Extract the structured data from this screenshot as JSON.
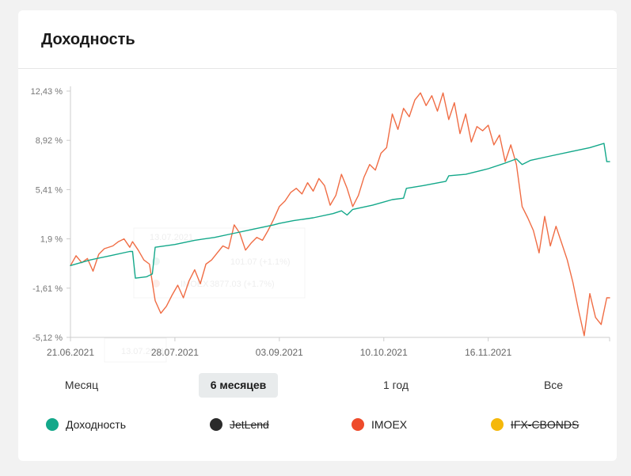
{
  "card": {
    "title": "Доходность"
  },
  "colors": {
    "dokhodnost": "#13a88a",
    "jetlend": "#2b2b2b",
    "imoex": "#ee4b2b",
    "imoex_line": "#f06d45",
    "ifx": "#f5b80a"
  },
  "periods": [
    {
      "label": "Месяц",
      "active": false
    },
    {
      "label": "6 месяцев",
      "active": true
    },
    {
      "label": "1 год",
      "active": false
    },
    {
      "label": "Все",
      "active": false
    }
  ],
  "legend": [
    {
      "label": "Доходность",
      "color": "#13a88a",
      "enabled": true,
      "icon": "dot-icon"
    },
    {
      "label": "JetLend",
      "color": "#2b2b2b",
      "enabled": false,
      "icon": "dot-icon"
    },
    {
      "label": "IMOEX",
      "color": "#ee4b2b",
      "enabled": true,
      "icon": "dot-icon"
    },
    {
      "label": "IFX-CBONDS",
      "color": "#f5b80a",
      "enabled": false,
      "icon": "dot-icon"
    }
  ],
  "chart_data": {
    "type": "line",
    "yticks": [
      "12,43 %",
      "8,92 %",
      "5,41 %",
      "1,9 %",
      "-1,61 %",
      "-5,12 %"
    ],
    "ytick_values": [
      12.43,
      8.92,
      5.41,
      1.9,
      -1.61,
      -5.12
    ],
    "ylim": [
      -5.12,
      12.43
    ],
    "xlim": [
      "2021-06-21",
      "2021-12-29"
    ],
    "xticks": [
      {
        "label": "21.06.2021",
        "date": "2021-06-21"
      },
      {
        "label": "28.07.2021",
        "date": "2021-07-28"
      },
      {
        "label": "03.09.2021",
        "date": "2021-09-03"
      },
      {
        "label": "10.10.2021",
        "date": "2021-10-10"
      },
      {
        "label": "16.11.2021",
        "date": "2021-11-16"
      }
    ],
    "grid": false,
    "ghost_tooltip": {
      "date": "13.07.2021",
      "row1": "101.07 (+1.1%)",
      "row2": "3877.03 (+1.7%)",
      "row2_name": "IMOEX",
      "footer": "13.07.2021"
    },
    "series": [
      {
        "name": "Доходность",
        "color": "#13a88a",
        "points": [
          [
            "2021-06-21",
            0.0
          ],
          [
            "2021-06-28",
            0.4
          ],
          [
            "2021-07-05",
            0.7
          ],
          [
            "2021-07-12",
            1.0
          ],
          [
            "2021-07-13",
            1.0
          ],
          [
            "2021-07-14",
            -0.9
          ],
          [
            "2021-07-18",
            -0.8
          ],
          [
            "2021-07-20",
            -0.6
          ],
          [
            "2021-07-21",
            1.3
          ],
          [
            "2021-07-28",
            1.5
          ],
          [
            "2021-08-04",
            1.8
          ],
          [
            "2021-08-11",
            2.0
          ],
          [
            "2021-08-18",
            2.3
          ],
          [
            "2021-08-25",
            2.6
          ],
          [
            "2021-09-01",
            2.9
          ],
          [
            "2021-09-03",
            3.0
          ],
          [
            "2021-09-08",
            3.2
          ],
          [
            "2021-09-15",
            3.4
          ],
          [
            "2021-09-22",
            3.7
          ],
          [
            "2021-09-25",
            3.9
          ],
          [
            "2021-09-27",
            3.6
          ],
          [
            "2021-09-29",
            4.0
          ],
          [
            "2021-10-06",
            4.3
          ],
          [
            "2021-10-13",
            4.7
          ],
          [
            "2021-10-17",
            4.8
          ],
          [
            "2021-10-18",
            5.5
          ],
          [
            "2021-10-24",
            5.7
          ],
          [
            "2021-11-01",
            6.0
          ],
          [
            "2021-11-02",
            6.4
          ],
          [
            "2021-11-08",
            6.5
          ],
          [
            "2021-11-14",
            6.8
          ],
          [
            "2021-11-16",
            6.9
          ],
          [
            "2021-11-22",
            7.3
          ],
          [
            "2021-11-26",
            7.6
          ],
          [
            "2021-11-28",
            7.2
          ],
          [
            "2021-12-01",
            7.5
          ],
          [
            "2021-12-08",
            7.8
          ],
          [
            "2021-12-15",
            8.1
          ],
          [
            "2021-12-22",
            8.4
          ],
          [
            "2021-12-27",
            8.7
          ],
          [
            "2021-12-28",
            7.4
          ],
          [
            "2021-12-29",
            7.4
          ]
        ]
      },
      {
        "name": "IMOEX",
        "color": "#f06d45",
        "points": [
          [
            "2021-06-21",
            0.0
          ],
          [
            "2021-06-23",
            0.7
          ],
          [
            "2021-06-25",
            0.2
          ],
          [
            "2021-06-27",
            0.5
          ],
          [
            "2021-06-29",
            -0.4
          ],
          [
            "2021-07-01",
            0.8
          ],
          [
            "2021-07-03",
            1.2
          ],
          [
            "2021-07-06",
            1.4
          ],
          [
            "2021-07-08",
            1.7
          ],
          [
            "2021-07-10",
            1.9
          ],
          [
            "2021-07-12",
            1.3
          ],
          [
            "2021-07-13",
            1.7
          ],
          [
            "2021-07-15",
            1.1
          ],
          [
            "2021-07-17",
            0.4
          ],
          [
            "2021-07-19",
            0.1
          ],
          [
            "2021-07-21",
            -2.5
          ],
          [
            "2021-07-23",
            -3.4
          ],
          [
            "2021-07-25",
            -2.9
          ],
          [
            "2021-07-27",
            -2.1
          ],
          [
            "2021-07-29",
            -1.4
          ],
          [
            "2021-07-31",
            -2.3
          ],
          [
            "2021-08-02",
            -1.1
          ],
          [
            "2021-08-04",
            -0.3
          ],
          [
            "2021-08-06",
            -1.3
          ],
          [
            "2021-08-08",
            0.1
          ],
          [
            "2021-08-10",
            0.4
          ],
          [
            "2021-08-12",
            0.9
          ],
          [
            "2021-08-14",
            1.4
          ],
          [
            "2021-08-16",
            1.2
          ],
          [
            "2021-08-18",
            2.9
          ],
          [
            "2021-08-20",
            2.3
          ],
          [
            "2021-08-22",
            1.1
          ],
          [
            "2021-08-24",
            1.6
          ],
          [
            "2021-08-26",
            2.0
          ],
          [
            "2021-08-28",
            1.8
          ],
          [
            "2021-08-30",
            2.5
          ],
          [
            "2021-09-01",
            3.3
          ],
          [
            "2021-09-03",
            4.2
          ],
          [
            "2021-09-05",
            4.6
          ],
          [
            "2021-09-07",
            5.2
          ],
          [
            "2021-09-09",
            5.5
          ],
          [
            "2021-09-11",
            5.1
          ],
          [
            "2021-09-13",
            5.9
          ],
          [
            "2021-09-15",
            5.3
          ],
          [
            "2021-09-17",
            6.2
          ],
          [
            "2021-09-19",
            5.7
          ],
          [
            "2021-09-21",
            4.3
          ],
          [
            "2021-09-23",
            5.0
          ],
          [
            "2021-09-25",
            6.5
          ],
          [
            "2021-09-27",
            5.5
          ],
          [
            "2021-09-29",
            4.2
          ],
          [
            "2021-10-01",
            5.0
          ],
          [
            "2021-10-03",
            6.3
          ],
          [
            "2021-10-05",
            7.2
          ],
          [
            "2021-10-07",
            6.8
          ],
          [
            "2021-10-09",
            8.0
          ],
          [
            "2021-10-11",
            8.4
          ],
          [
            "2021-10-13",
            10.8
          ],
          [
            "2021-10-15",
            9.7
          ],
          [
            "2021-10-17",
            11.2
          ],
          [
            "2021-10-19",
            10.6
          ],
          [
            "2021-10-21",
            11.8
          ],
          [
            "2021-10-23",
            12.3
          ],
          [
            "2021-10-25",
            11.4
          ],
          [
            "2021-10-27",
            12.1
          ],
          [
            "2021-10-29",
            11.0
          ],
          [
            "2021-10-31",
            12.3
          ],
          [
            "2021-11-02",
            10.4
          ],
          [
            "2021-11-04",
            11.6
          ],
          [
            "2021-11-06",
            9.4
          ],
          [
            "2021-11-08",
            10.8
          ],
          [
            "2021-11-10",
            8.8
          ],
          [
            "2021-11-12",
            9.9
          ],
          [
            "2021-11-14",
            9.6
          ],
          [
            "2021-11-16",
            10.0
          ],
          [
            "2021-11-18",
            8.6
          ],
          [
            "2021-11-20",
            9.3
          ],
          [
            "2021-11-22",
            7.4
          ],
          [
            "2021-11-24",
            8.6
          ],
          [
            "2021-11-26",
            7.2
          ],
          [
            "2021-11-28",
            4.2
          ],
          [
            "2021-11-30",
            3.4
          ],
          [
            "2021-12-02",
            2.5
          ],
          [
            "2021-12-04",
            0.9
          ],
          [
            "2021-12-06",
            3.5
          ],
          [
            "2021-12-08",
            1.4
          ],
          [
            "2021-12-10",
            2.8
          ],
          [
            "2021-12-12",
            1.6
          ],
          [
            "2021-12-14",
            0.4
          ],
          [
            "2021-12-16",
            -1.2
          ],
          [
            "2021-12-18",
            -3.2
          ],
          [
            "2021-12-20",
            -5.0
          ],
          [
            "2021-12-22",
            -2.0
          ],
          [
            "2021-12-24",
            -3.7
          ],
          [
            "2021-12-26",
            -4.2
          ],
          [
            "2021-12-28",
            -2.3
          ],
          [
            "2021-12-29",
            -2.3
          ]
        ]
      }
    ]
  }
}
